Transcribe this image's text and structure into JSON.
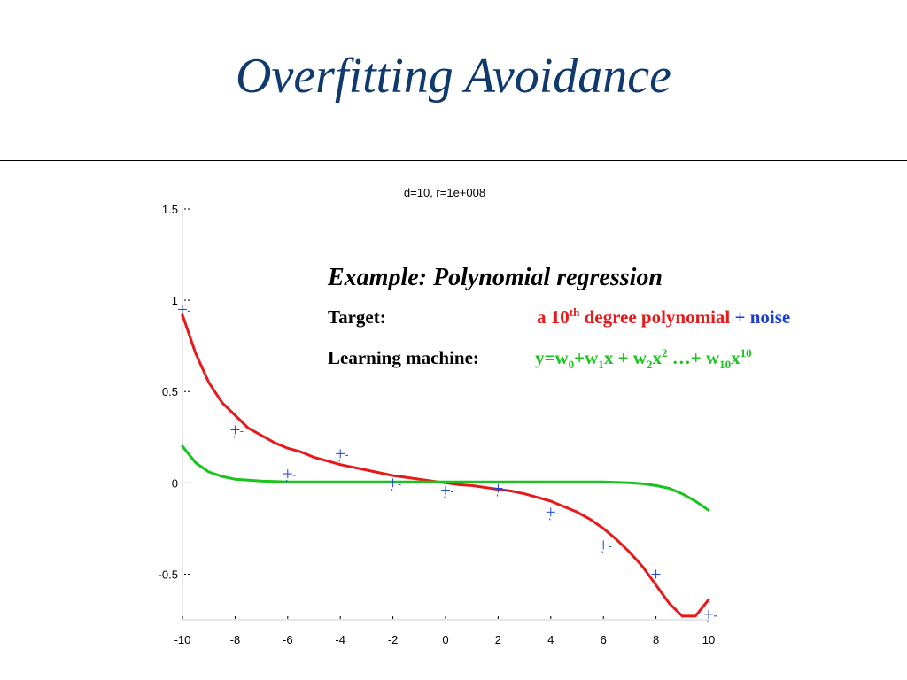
{
  "slide": {
    "title": "Overfitting Avoidance"
  },
  "annotation": {
    "heading": "Example: Polynomial regression",
    "target_label": "Target:",
    "target_value": {
      "part1": "a 10",
      "sup": "th",
      "part2": " degree polynomial",
      "plus": " + ",
      "noise": "noise"
    },
    "machine_label": "Learning machine:",
    "machine_formula": {
      "t1": "y=w",
      "s1": "0",
      "t2": "+w",
      "s2": "1",
      "t3": "x + w",
      "s3": "2",
      "t4": "x",
      "p4": "2",
      "t5": " …+ w",
      "s5": "10",
      "t6": "x",
      "p6": "10"
    }
  },
  "colors": {
    "title": "#0f3a6e",
    "fit_curve": "#e8191b",
    "regularized_curve": "#18c51a",
    "data_points": "#1b3fd6",
    "noise_word": "#1b3fd6"
  },
  "chart_data": {
    "type": "line",
    "title": "d=10, r=1e+008",
    "xlim": [
      -10,
      10
    ],
    "ylim": [
      -0.75,
      1.5
    ],
    "xticks": [
      -10,
      -8,
      -6,
      -4,
      -2,
      0,
      2,
      4,
      6,
      8,
      10
    ],
    "yticks": [
      {
        "value": 1.5,
        "label": "1.5"
      },
      {
        "value": 1,
        "label": "1"
      },
      {
        "value": 0.5,
        "label": "0.5"
      },
      {
        "value": 0,
        "label": "0"
      },
      {
        "value": -0.5,
        "label": "-0.5"
      }
    ],
    "grid": false,
    "scatter": {
      "marker": "plus",
      "x": [
        -10,
        -8,
        -6,
        -4,
        -2,
        0,
        2,
        4,
        6,
        8,
        10
      ],
      "y": [
        0.95,
        0.29,
        0.05,
        0.16,
        0,
        -0.04,
        -0.03,
        -0.16,
        -0.34,
        -0.5,
        -0.72
      ]
    },
    "series": [
      {
        "color": "#e8191b",
        "x": [
          -10,
          -9.5,
          -9,
          -8.5,
          -8,
          -7.5,
          -7,
          -6.5,
          -6,
          -5.5,
          -5,
          -4.5,
          -4,
          -3.5,
          -3,
          -2.5,
          -2,
          -1.5,
          -1,
          -0.5,
          0,
          0.5,
          1,
          1.5,
          2,
          2.5,
          3,
          3.5,
          4,
          4.5,
          5,
          5.5,
          6,
          6.5,
          7,
          7.5,
          8,
          8.5,
          9,
          9.5,
          10
        ],
        "y": [
          0.92,
          0.71,
          0.55,
          0.44,
          0.37,
          0.3,
          0.26,
          0.22,
          0.19,
          0.17,
          0.14,
          0.12,
          0.1,
          0.085,
          0.07,
          0.055,
          0.04,
          0.03,
          0.02,
          0.01,
          0.0,
          -0.01,
          -0.015,
          -0.025,
          -0.035,
          -0.045,
          -0.06,
          -0.08,
          -0.1,
          -0.13,
          -0.16,
          -0.2,
          -0.25,
          -0.31,
          -0.38,
          -0.46,
          -0.56,
          -0.66,
          -0.73,
          -0.73,
          -0.64
        ]
      },
      {
        "color": "#18c51a",
        "x": [
          -10,
          -9.5,
          -9,
          -8.5,
          -8,
          -7,
          -6,
          -4,
          -2,
          0,
          2,
          4,
          6,
          7,
          7.5,
          8,
          8.5,
          9,
          9.5,
          10
        ],
        "y": [
          0.2,
          0.11,
          0.06,
          0.035,
          0.02,
          0.01,
          0.005,
          0.005,
          0.005,
          0.005,
          0.005,
          0.005,
          0.005,
          0.0,
          -0.005,
          -0.015,
          -0.03,
          -0.06,
          -0.1,
          -0.15
        ]
      }
    ]
  }
}
